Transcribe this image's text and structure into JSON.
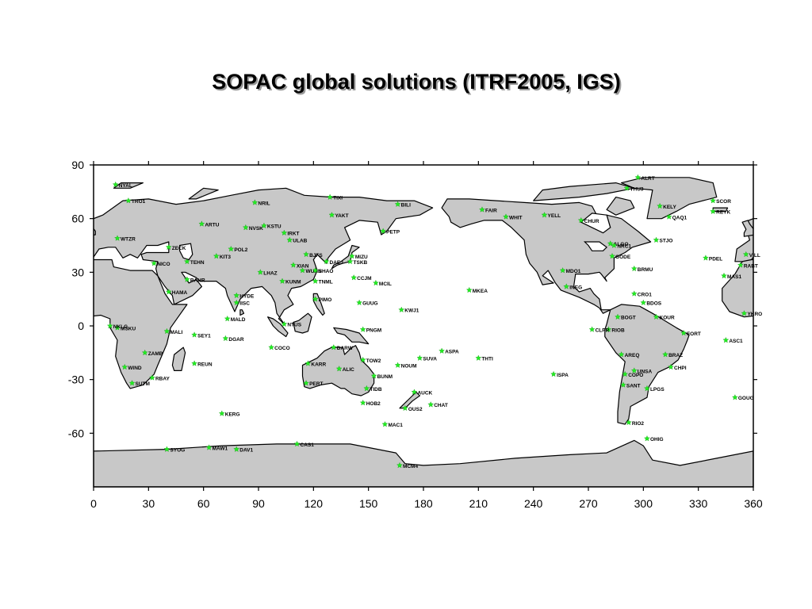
{
  "title": "SOPAC global solutions (ITRF2005, IGS)",
  "colors": {
    "land": "#c8c8c8",
    "ocean": "#ffffff",
    "coast": "#000000",
    "station": "#22ee22"
  },
  "icons": {
    "station_marker": "star-icon"
  },
  "chart_data": {
    "type": "scatter",
    "projection": "equirectangular",
    "xlim": [
      0,
      360
    ],
    "ylim": [
      -90,
      90
    ],
    "x_ticks": [
      "0",
      "30",
      "60",
      "90",
      "120",
      "150",
      "180",
      "210",
      "240",
      "270",
      "300",
      "330",
      "360"
    ],
    "y_ticks": [
      "90",
      "60",
      "30",
      "0",
      "-30",
      "-60"
    ],
    "x_tick_values": [
      0,
      30,
      60,
      90,
      120,
      150,
      180,
      210,
      240,
      270,
      300,
      330,
      360
    ],
    "y_tick_values": [
      90,
      60,
      30,
      0,
      -30,
      -60
    ],
    "grid": false,
    "stations": [
      {
        "label": "NYAL",
        "lon": 12,
        "lat": 79
      },
      {
        "label": "TRO1",
        "lon": 19,
        "lat": 70
      },
      {
        "label": "NRIL",
        "lon": 88,
        "lat": 69
      },
      {
        "label": "TIXI",
        "lon": 129,
        "lat": 72
      },
      {
        "label": "BILI",
        "lon": 166,
        "lat": 68
      },
      {
        "label": "YAKT",
        "lon": 130,
        "lat": 62
      },
      {
        "label": "ARTU",
        "lon": 59,
        "lat": 57
      },
      {
        "label": "NVSK",
        "lon": 83,
        "lat": 55
      },
      {
        "label": "KSTU",
        "lon": 93,
        "lat": 56
      },
      {
        "label": "IRKT",
        "lon": 104,
        "lat": 52
      },
      {
        "label": "ULAB",
        "lon": 107,
        "lat": 48
      },
      {
        "label": "PETP",
        "lon": 158,
        "lat": 53
      },
      {
        "label": "KIT3",
        "lon": 67,
        "lat": 39
      },
      {
        "label": "POL2",
        "lon": 75,
        "lat": 43
      },
      {
        "label": "TEHN",
        "lon": 51,
        "lat": 36
      },
      {
        "label": "BJFS",
        "lon": 116,
        "lat": 40
      },
      {
        "label": "XIAN",
        "lon": 109,
        "lat": 34
      },
      {
        "label": "WUHN",
        "lon": 114,
        "lat": 31
      },
      {
        "label": "SHAO",
        "lon": 121,
        "lat": 31
      },
      {
        "label": "DAEJ",
        "lon": 127,
        "lat": 36
      },
      {
        "label": "MIZU",
        "lon": 141,
        "lat": 39
      },
      {
        "label": "TSKB",
        "lon": 140,
        "lat": 36
      },
      {
        "label": "LHAZ",
        "lon": 91,
        "lat": 30
      },
      {
        "label": "KUNM",
        "lon": 103,
        "lat": 25
      },
      {
        "label": "TNML",
        "lon": 121,
        "lat": 25
      },
      {
        "label": "CCJM",
        "lon": 142,
        "lat": 27
      },
      {
        "label": "MCIL",
        "lon": 154,
        "lat": 24
      },
      {
        "label": "BAHR",
        "lon": 51,
        "lat": 26
      },
      {
        "label": "HAMA",
        "lon": 41,
        "lat": 19
      },
      {
        "label": "IISC",
        "lon": 78,
        "lat": 13
      },
      {
        "label": "HYDE",
        "lon": 78,
        "lat": 17
      },
      {
        "label": "PIMO",
        "lon": 121,
        "lat": 15
      },
      {
        "label": "GUUG",
        "lon": 145,
        "lat": 13
      },
      {
        "label": "KWJ1",
        "lon": 168,
        "lat": 9
      },
      {
        "label": "MALD",
        "lon": 73,
        "lat": 4
      },
      {
        "label": "NTUS",
        "lon": 104,
        "lat": 1
      },
      {
        "label": "MKEA",
        "lon": 205,
        "lat": 20
      },
      {
        "label": "MALI",
        "lon": 40,
        "lat": -3
      },
      {
        "label": "MSKU",
        "lon": 13,
        "lat": -1
      },
      {
        "label": "SEY1",
        "lon": 55,
        "lat": -5
      },
      {
        "label": "DGAR",
        "lon": 72,
        "lat": -7
      },
      {
        "label": "COCO",
        "lon": 97,
        "lat": -12
      },
      {
        "label": "DARW",
        "lon": 131,
        "lat": -12
      },
      {
        "label": "PNGM",
        "lon": 147,
        "lat": -2
      },
      {
        "label": "SUVA",
        "lon": 178,
        "lat": -18
      },
      {
        "label": "ASPA",
        "lon": 190,
        "lat": -14
      },
      {
        "label": "THTI",
        "lon": 210,
        "lat": -18
      },
      {
        "label": "NOUM",
        "lon": 166,
        "lat": -22
      },
      {
        "label": "KARR",
        "lon": 117,
        "lat": -21
      },
      {
        "label": "ALIC",
        "lon": 134,
        "lat": -24
      },
      {
        "label": "TOW2",
        "lon": 147,
        "lat": -19
      },
      {
        "label": "BUNM",
        "lon": 153,
        "lat": -28
      },
      {
        "label": "PERT",
        "lon": 116,
        "lat": -32
      },
      {
        "label": "TIDB",
        "lon": 149,
        "lat": -35
      },
      {
        "label": "HOB2",
        "lon": 147,
        "lat": -43
      },
      {
        "label": "AUCK",
        "lon": 175,
        "lat": -37
      },
      {
        "label": "CHAT",
        "lon": 184,
        "lat": -44
      },
      {
        "label": "OUS2",
        "lon": 170,
        "lat": -46
      },
      {
        "label": "MAC1",
        "lon": 159,
        "lat": -55
      },
      {
        "label": "ZAMB",
        "lon": 28,
        "lat": -15
      },
      {
        "label": "WIND",
        "lon": 17,
        "lat": -23
      },
      {
        "label": "RBAY",
        "lon": 32,
        "lat": -29
      },
      {
        "label": "SUTM",
        "lon": 21,
        "lat": -32
      },
      {
        "label": "REUN",
        "lon": 55,
        "lat": -21
      },
      {
        "label": "KERG",
        "lon": 70,
        "lat": -49
      },
      {
        "label": "SYOG",
        "lon": 40,
        "lat": -69
      },
      {
        "label": "MAW1",
        "lon": 63,
        "lat": -68
      },
      {
        "label": "DAV1",
        "lon": 78,
        "lat": -69
      },
      {
        "label": "CAS1",
        "lon": 111,
        "lat": -66
      },
      {
        "label": "MCM4",
        "lon": 167,
        "lat": -78
      },
      {
        "label": "FAIR",
        "lon": 212,
        "lat": 65
      },
      {
        "label": "WHIT",
        "lon": 225,
        "lat": 61
      },
      {
        "label": "YELL",
        "lon": 246,
        "lat": 62
      },
      {
        "label": "CHUR",
        "lon": 266,
        "lat": 59
      },
      {
        "label": "ALGO",
        "lon": 282,
        "lat": 46
      },
      {
        "label": "NRC1",
        "lon": 284,
        "lat": 45
      },
      {
        "label": "STJO",
        "lon": 307,
        "lat": 48
      },
      {
        "label": "GODE",
        "lon": 283,
        "lat": 39
      },
      {
        "label": "KELY",
        "lon": 309,
        "lat": 67
      },
      {
        "label": "SCOR",
        "lon": 338,
        "lat": 70
      },
      {
        "label": "REYK",
        "lon": 338,
        "lat": 64
      },
      {
        "label": "QAQ1",
        "lon": 314,
        "lat": 61
      },
      {
        "label": "THU3",
        "lon": 291,
        "lat": 77
      },
      {
        "label": "ALRT",
        "lon": 297,
        "lat": 83
      },
      {
        "label": "PDEL",
        "lon": 334,
        "lat": 38
      },
      {
        "label": "BRMU",
        "lon": 295,
        "lat": 32
      },
      {
        "label": "MDO1",
        "lon": 256,
        "lat": 31
      },
      {
        "label": "INEG",
        "lon": 258,
        "lat": 22
      },
      {
        "label": "CRO1",
        "lon": 295,
        "lat": 18
      },
      {
        "label": "BDOS",
        "lon": 300,
        "lat": 13
      },
      {
        "label": "BOGT",
        "lon": 286,
        "lat": 5
      },
      {
        "label": "KOUR",
        "lon": 307,
        "lat": 5
      },
      {
        "label": "FORT",
        "lon": 322,
        "lat": -4
      },
      {
        "label": "RIOB",
        "lon": 281,
        "lat": -2
      },
      {
        "label": "CLPR",
        "lon": 272,
        "lat": -2
      },
      {
        "label": "AREQ",
        "lon": 288,
        "lat": -16
      },
      {
        "label": "BRAZ",
        "lon": 312,
        "lat": -16
      },
      {
        "label": "UNSA",
        "lon": 295,
        "lat": -25
      },
      {
        "label": "CHPI",
        "lon": 315,
        "lat": -23
      },
      {
        "label": "COPO",
        "lon": 290,
        "lat": -27
      },
      {
        "label": "SANT",
        "lon": 289,
        "lat": -33
      },
      {
        "label": "LPGS",
        "lon": 302,
        "lat": -35
      },
      {
        "label": "ISPA",
        "lon": 251,
        "lat": -27
      },
      {
        "label": "RIO2",
        "lon": 292,
        "lat": -54
      },
      {
        "label": "OHIG",
        "lon": 302,
        "lat": -63
      },
      {
        "label": "ASC1",
        "lon": 345,
        "lat": -8
      },
      {
        "label": "GOUG",
        "lon": 350,
        "lat": -40
      },
      {
        "label": "MAS1",
        "lon": 344,
        "lat": 28
      },
      {
        "label": "YKRO",
        "lon": 355,
        "lat": 7
      },
      {
        "label": "NKLG",
        "lon": 9,
        "lat": 0
      },
      {
        "label": "RABT",
        "lon": 353,
        "lat": 34
      },
      {
        "label": "VILL",
        "lon": 356,
        "lat": 40
      },
      {
        "label": "WTZR",
        "lon": 13,
        "lat": 49
      },
      {
        "label": "ZECK",
        "lon": 41,
        "lat": 44
      },
      {
        "label": "NICO",
        "lon": 33,
        "lat": 35
      }
    ]
  }
}
